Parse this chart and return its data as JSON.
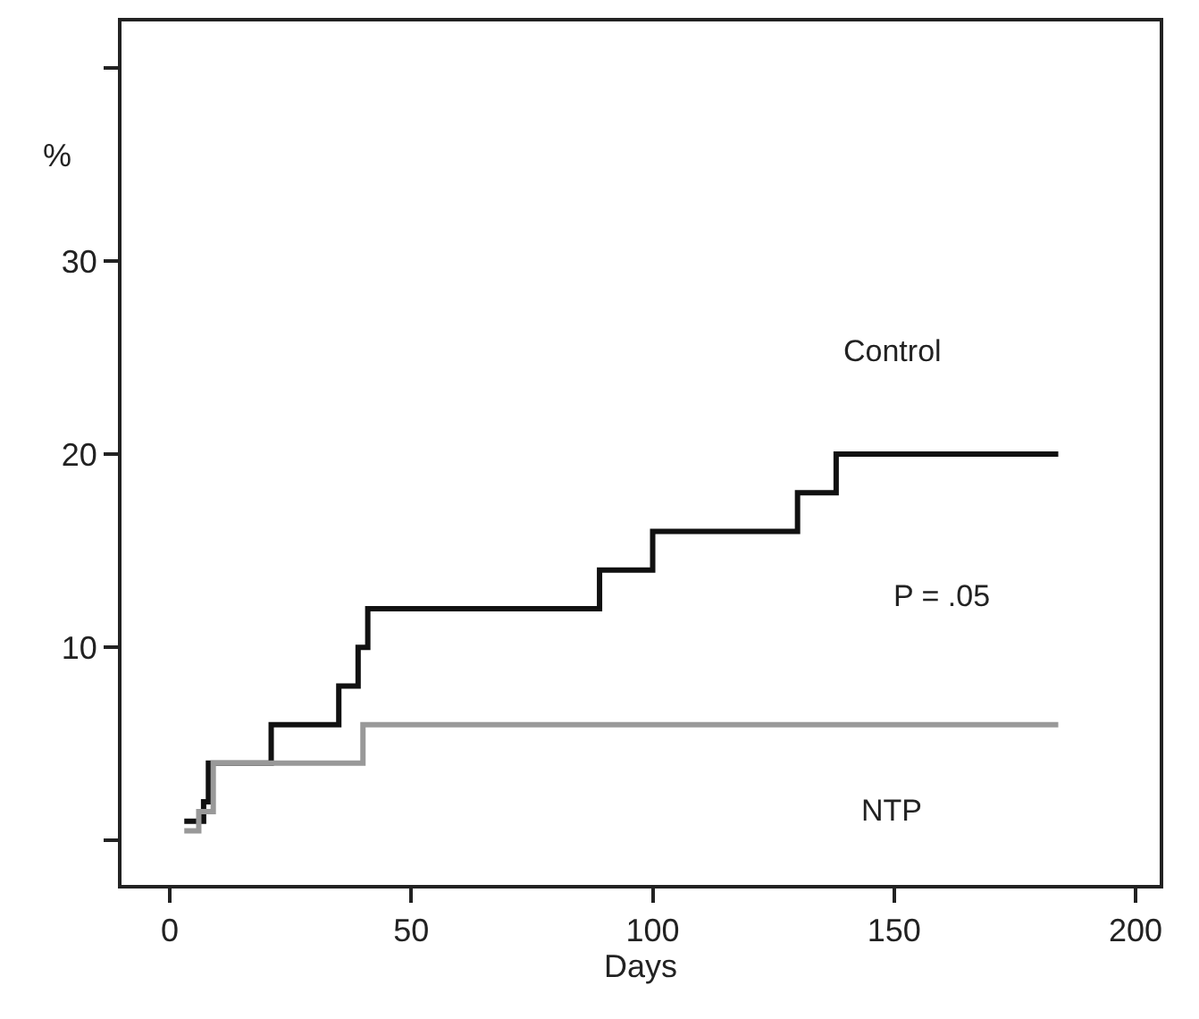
{
  "chart_data": {
    "type": "step",
    "xlabel": "Days",
    "ylabel": "%",
    "series": [
      {
        "name": "Control",
        "color": "#111111",
        "x": [
          3,
          7,
          8,
          21,
          35,
          39,
          41,
          89,
          100,
          130,
          138,
          184
        ],
        "values": [
          1,
          2,
          4,
          6,
          8,
          10,
          12,
          14,
          16,
          18,
          20,
          20
        ]
      },
      {
        "name": "NTP",
        "color": "#999999",
        "x": [
          3,
          6,
          9,
          40,
          184
        ],
        "values": [
          0.5,
          1.5,
          4,
          6,
          6
        ]
      }
    ],
    "annotations": [
      "P = .05"
    ],
    "xlim": [
      -10,
      205
    ],
    "ylim": [
      -2.3,
      42.4
    ],
    "xticks": [
      0,
      50,
      100,
      150,
      200
    ],
    "yticks": [
      {
        "value": 0,
        "label": null
      },
      10,
      20,
      30,
      {
        "value": 40,
        "label": null
      }
    ],
    "line_style": "solid"
  }
}
